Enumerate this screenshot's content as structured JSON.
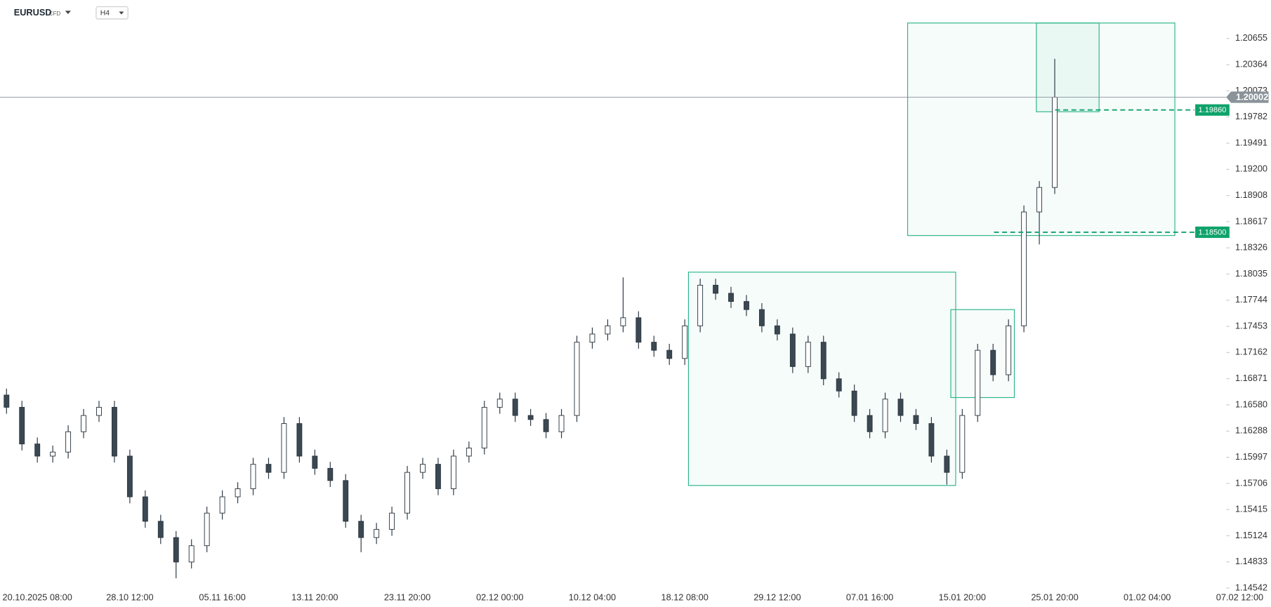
{
  "chart_data": {
    "type": "candlestick",
    "symbol": "EURUSD",
    "instrument_type": "CFD",
    "timeframe": "H4",
    "categories": [
      null,
      null,
      "20.10.2025  08:00",
      null,
      null,
      null,
      null,
      null,
      "28.10  12:00",
      null,
      null,
      null,
      null,
      null,
      "05.11  16:00",
      null,
      null,
      null,
      null,
      null,
      "13.11  20:00",
      null,
      null,
      null,
      null,
      null,
      "23.11  20:00",
      null,
      null,
      null,
      null,
      null,
      "02.12  00:00",
      null,
      null,
      null,
      null,
      null,
      "10.12  04:00",
      null,
      null,
      null,
      null,
      null,
      "18.12  08:00",
      null,
      null,
      null,
      null,
      null,
      "29.12  12:00",
      null,
      null,
      null,
      null,
      null,
      "07.01  16:00",
      null,
      null,
      null,
      null,
      null,
      "15.01  20:00",
      null,
      null,
      null,
      null,
      null,
      "25.01  20:00",
      null,
      null,
      null,
      null,
      null,
      "01.02  04:00",
      null,
      null,
      null,
      null,
      null,
      "07.02  12:00",
      null
    ],
    "open": [
      1.16689,
      1.16553,
      1.16145,
      1.1601,
      1.16055,
      1.16281,
      1.16462,
      1.16553,
      1.1601,
      1.15557,
      1.15285,
      1.15104,
      1.14832,
      1.15013,
      1.15376,
      1.15557,
      1.15647,
      1.15919,
      1.15829,
      1.16372,
      1.1601,
      1.15874,
      1.15738,
      1.15285,
      1.15104,
      1.15195,
      1.15376,
      1.15829,
      1.15919,
      1.15647,
      1.1601,
      1.161,
      1.16553,
      1.16644,
      1.16462,
      1.16417,
      1.16281,
      1.16462,
      1.17277,
      1.17368,
      1.17459,
      1.17549,
      1.17277,
      1.17187,
      1.17096,
      1.17459,
      1.17911,
      1.17821,
      1.1773,
      1.1764,
      1.17459,
      1.17368,
      1.17006,
      1.17277,
      1.1687,
      1.16734,
      1.16462,
      1.16281,
      1.16644,
      1.16462,
      1.16372,
      1.1601,
      1.15829,
      1.16462,
      1.17187,
      1.16915,
      1.17459,
      1.18726,
      1.18998,
      null,
      null,
      null,
      null,
      null,
      null,
      null,
      null,
      null,
      null,
      null,
      null,
      null
    ],
    "high": [
      1.16761,
      1.16625,
      1.16217,
      1.16127,
      1.16353,
      1.16534,
      1.16625,
      1.16625,
      1.16082,
      1.15629,
      1.15357,
      1.15176,
      1.15085,
      1.15448,
      1.15629,
      1.15719,
      1.15991,
      1.15991,
      1.16444,
      1.16444,
      1.16082,
      1.15946,
      1.1581,
      1.15357,
      1.15267,
      1.15448,
      1.15901,
      1.15991,
      1.15991,
      1.16082,
      1.16172,
      1.16625,
      1.16716,
      1.16716,
      1.16534,
      1.16489,
      1.16534,
      1.17349,
      1.1744,
      1.17531,
      1.17998,
      1.17621,
      1.17349,
      1.17259,
      1.17531,
      1.17983,
      1.17983,
      1.17893,
      1.17802,
      1.17712,
      1.17531,
      1.1744,
      1.17349,
      1.17349,
      1.16942,
      1.16806,
      1.16534,
      1.16716,
      1.16716,
      1.16534,
      1.16444,
      1.16082,
      1.16534,
      1.17259,
      1.17259,
      1.17531,
      1.18798,
      1.1907,
      1.20429,
      null,
      null,
      null,
      null,
      null,
      null,
      null,
      null,
      null,
      null,
      null,
      null,
      null
    ],
    "low": [
      1.16481,
      1.16073,
      1.15938,
      1.15938,
      1.15983,
      1.16209,
      1.1639,
      1.15938,
      1.15485,
      1.15213,
      1.15032,
      1.14651,
      1.1476,
      1.14941,
      1.15304,
      1.15485,
      1.15575,
      1.15757,
      1.15757,
      1.15938,
      1.15802,
      1.15666,
      1.15213,
      1.14941,
      1.15032,
      1.15123,
      1.15304,
      1.15757,
      1.15575,
      1.15575,
      1.15938,
      1.16028,
      1.16481,
      1.1639,
      1.16345,
      1.16209,
      1.16209,
      1.1639,
      1.17205,
      1.17296,
      1.17387,
      1.17205,
      1.17115,
      1.17024,
      1.17024,
      1.17387,
      1.17749,
      1.17658,
      1.17568,
      1.17387,
      1.17296,
      1.16934,
      1.16934,
      1.16798,
      1.16662,
      1.1639,
      1.16209,
      1.16209,
      1.1639,
      1.163,
      1.15938,
      1.15693,
      1.15757,
      1.1639,
      1.16843,
      1.16843,
      1.17387,
      1.18364,
      1.18926,
      null,
      null,
      null,
      null,
      null,
      null,
      null,
      null,
      null,
      null,
      null,
      null,
      null
    ],
    "close": [
      1.16553,
      1.16145,
      1.1601,
      1.16055,
      1.16281,
      1.16462,
      1.16553,
      1.1601,
      1.15557,
      1.15285,
      1.15104,
      1.14832,
      1.15013,
      1.15376,
      1.15557,
      1.15647,
      1.15919,
      1.15829,
      1.16372,
      1.1601,
      1.15874,
      1.15738,
      1.15285,
      1.15104,
      1.15195,
      1.15376,
      1.15829,
      1.15919,
      1.15647,
      1.1601,
      1.161,
      1.16553,
      1.16644,
      1.16462,
      1.16417,
      1.16281,
      1.16462,
      1.17277,
      1.17368,
      1.17459,
      1.17549,
      1.17277,
      1.17187,
      1.17096,
      1.17459,
      1.17911,
      1.17821,
      1.1773,
      1.1764,
      1.17459,
      1.17368,
      1.17006,
      1.17277,
      1.1687,
      1.16734,
      1.16462,
      1.16281,
      1.16644,
      1.16462,
      1.16372,
      1.1601,
      1.15829,
      1.16462,
      1.17187,
      1.16915,
      1.17459,
      1.18726,
      1.18998,
      1.20002,
      null,
      null,
      null,
      null,
      null,
      null,
      null,
      null,
      null,
      null,
      null,
      null,
      null
    ],
    "up_color": "#ffffff",
    "down_color": "#3b4852",
    "wick_color": "#2b3640",
    "ylim": [
      1.14515,
      1.21081
    ],
    "yticks": [
      1.20655,
      1.20364,
      1.20073,
      1.19782,
      1.19491,
      {
        "value": 1.192,
        "label": "1.19200"
      },
      1.18908,
      1.18617,
      1.18326,
      1.18035,
      1.17744,
      1.17453,
      1.17162,
      1.16871,
      {
        "value": 1.1658,
        "label": "1.16580"
      },
      1.16288,
      1.15997,
      1.15706,
      1.15415,
      1.15124,
      1.14833,
      1.14542
    ],
    "levels": [
      {
        "value": 1.1986,
        "label": "1.19860"
      },
      {
        "value": 1.185,
        "label": "1.18500"
      }
    ],
    "level_color": "#0fa36b",
    "last_price_color": "#8a9399"
  }
}
